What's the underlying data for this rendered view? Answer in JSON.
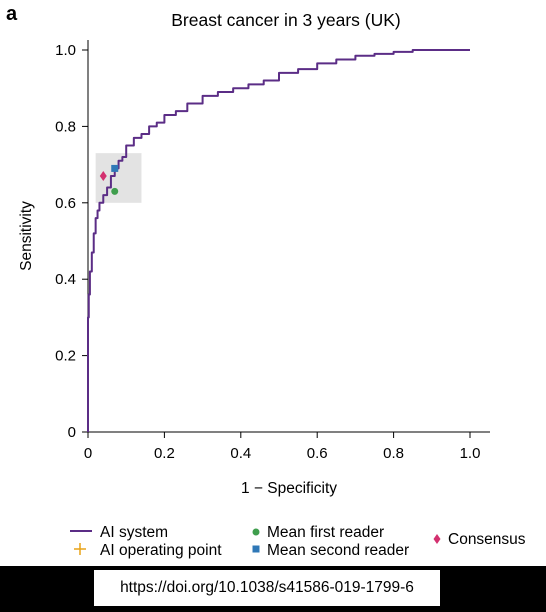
{
  "panel_label": "a",
  "doi": "https://doi.org/10.1038/s41586-019-1799-6",
  "colors": {
    "curve": "#5b2d86",
    "operating_point": "#e8a317",
    "first_reader": "#3f9e4d",
    "second_reader": "#2f78b7",
    "consensus": "#d3306f",
    "highlight_box": "#e3e3e3"
  },
  "legend": {
    "ai_system": "AI system",
    "ai_operating_point": "AI operating point",
    "mean_first_reader": "Mean first reader",
    "mean_second_reader": "Mean second reader",
    "consensus": "Consensus"
  },
  "chart_data": {
    "type": "line",
    "title": "Breast cancer in 3 years (UK)",
    "xlabel": "1 − Specificity",
    "ylabel": "Sensitivity",
    "xlim": [
      0,
      1.05
    ],
    "ylim": [
      0,
      1.05
    ],
    "xticks": [
      "0",
      "0.2",
      "0.4",
      "0.6",
      "0.8",
      "1.0"
    ],
    "yticks": [
      "0",
      "0.2",
      "0.4",
      "0.6",
      "0.8",
      "1.0"
    ],
    "grid": false,
    "legend_position": "bottom",
    "series": [
      {
        "name": "AI system",
        "x": [
          0,
          0.002,
          0.005,
          0.01,
          0.015,
          0.02,
          0.025,
          0.03,
          0.04,
          0.05,
          0.06,
          0.07,
          0.08,
          0.09,
          0.1,
          0.12,
          0.14,
          0.16,
          0.18,
          0.2,
          0.23,
          0.26,
          0.3,
          0.34,
          0.38,
          0.42,
          0.46,
          0.5,
          0.55,
          0.6,
          0.65,
          0.7,
          0.75,
          0.8,
          0.85,
          0.9,
          0.95,
          1.0
        ],
        "y": [
          0,
          0.3,
          0.36,
          0.42,
          0.47,
          0.52,
          0.56,
          0.58,
          0.6,
          0.62,
          0.64,
          0.67,
          0.69,
          0.71,
          0.72,
          0.75,
          0.77,
          0.78,
          0.8,
          0.81,
          0.83,
          0.84,
          0.86,
          0.88,
          0.89,
          0.9,
          0.91,
          0.92,
          0.94,
          0.95,
          0.965,
          0.975,
          0.985,
          0.99,
          0.995,
          1.0,
          1.0,
          1.0
        ]
      }
    ],
    "points": [
      {
        "name": "Mean first reader",
        "x": 0.07,
        "y": 0.63,
        "marker": "circle"
      },
      {
        "name": "Mean second reader",
        "x": 0.07,
        "y": 0.69,
        "marker": "square"
      },
      {
        "name": "Consensus",
        "x": 0.04,
        "y": 0.67,
        "marker": "diamond"
      }
    ],
    "highlight_region": {
      "x": [
        0.02,
        0.14
      ],
      "y": [
        0.6,
        0.73
      ]
    }
  }
}
